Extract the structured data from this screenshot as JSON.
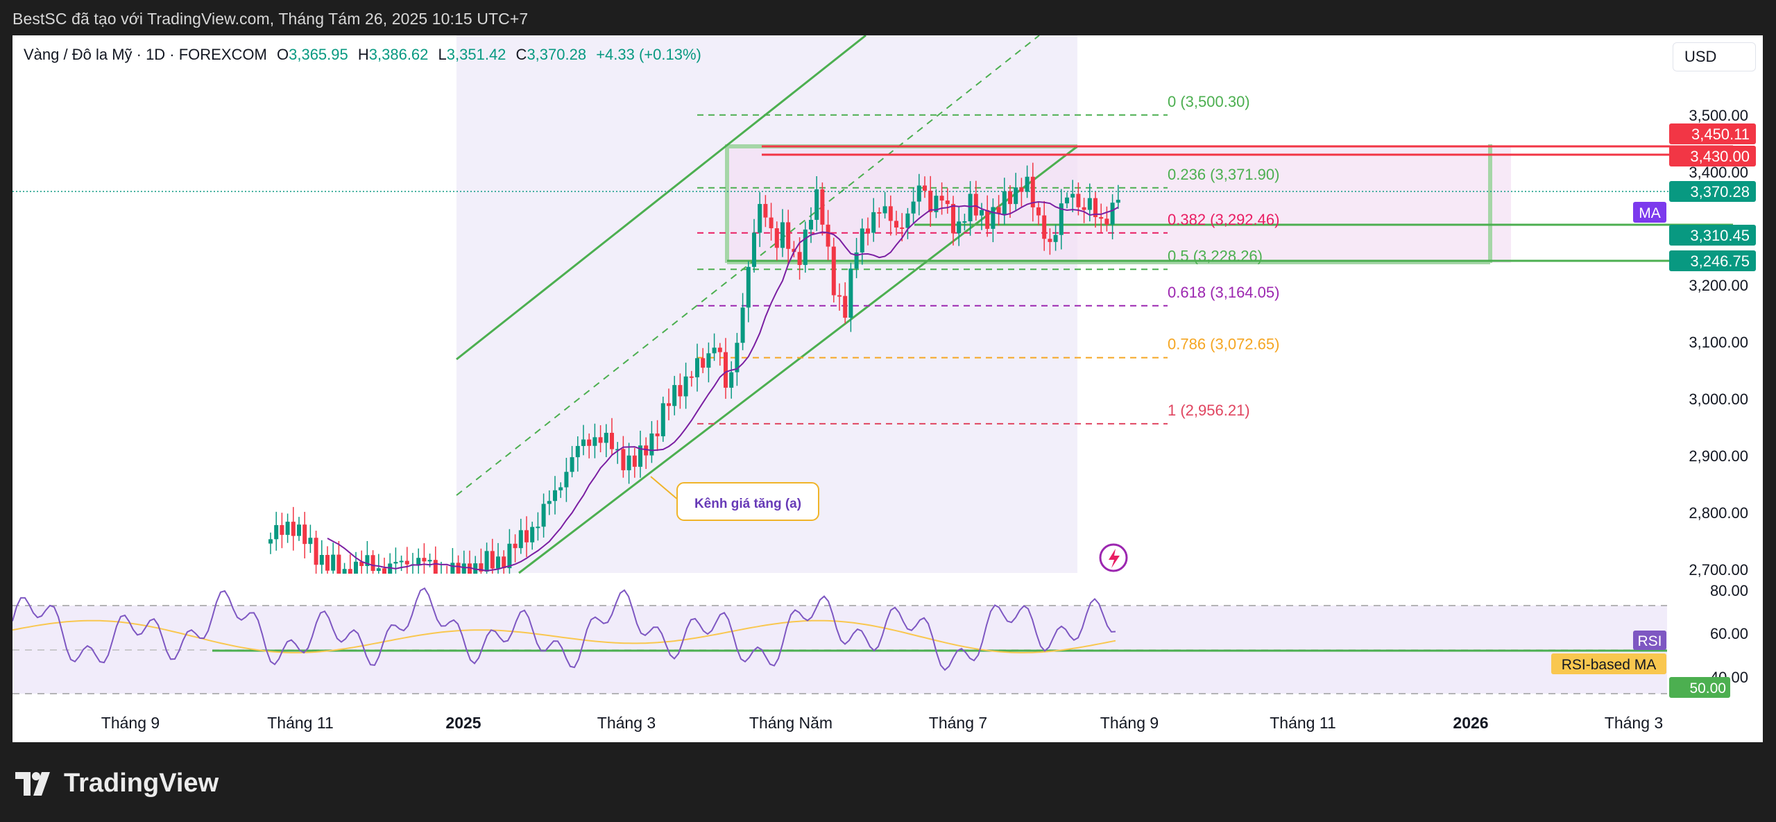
{
  "header": {
    "attribution": "BestSC đã tạo với TradingView.com, Tháng Tám 26, 2025 10:15 UTC+7"
  },
  "legend": {
    "symbol": "Vàng / Đô la Mỹ · 1D · FOREXCOM",
    "o_label": "O",
    "o_value": "3,365.95",
    "h_label": "H",
    "h_value": "3,386.62",
    "l_label": "L",
    "l_value": "3,351.42",
    "c_label": "C",
    "c_value": "3,370.28",
    "change": "+4.33 (+0.13%)"
  },
  "currency_button": {
    "label": "USD"
  },
  "chart_data": {
    "type": "candlestick",
    "price_axis_ticks": [
      "3,500.00",
      "3,400.00",
      "3,200.00",
      "3,100.00",
      "3,000.00",
      "2,900.00",
      "2,800.00",
      "2,700.00"
    ],
    "rsi_axis_ticks": [
      "80.00",
      "60.00",
      "40.00"
    ],
    "time_axis_labels": [
      {
        "label": "Tháng 9",
        "bold": false
      },
      {
        "label": "Tháng 11",
        "bold": false
      },
      {
        "label": "2025",
        "bold": true
      },
      {
        "label": "Tháng 3",
        "bold": false
      },
      {
        "label": "Tháng Năm",
        "bold": false
      },
      {
        "label": "Tháng 7",
        "bold": false
      },
      {
        "label": "Tháng 9",
        "bold": false
      },
      {
        "label": "Tháng 11",
        "bold": false
      },
      {
        "label": "2026",
        "bold": true
      },
      {
        "label": "Tháng 3",
        "bold": false
      }
    ],
    "price_tags": [
      {
        "value": "3,450.11",
        "color": "#f23645"
      },
      {
        "value": "3,430.00",
        "color": "#f23645"
      },
      {
        "value": "3,370.28",
        "color": "#089981"
      },
      {
        "value": "3,310.45",
        "color": "#089981"
      },
      {
        "value": "3,246.75",
        "color": "#089981"
      }
    ],
    "fibonacci_levels": [
      {
        "label": "0 (3,500.30)",
        "value": 3500.3,
        "color": "#4caf50"
      },
      {
        "label": "0.236 (3,371.90)",
        "value": 3371.9,
        "color": "#4caf50"
      },
      {
        "label": "0.382 (3,292.46)",
        "value": 3292.46,
        "color": "#e91e63"
      },
      {
        "label": "0.5 (3,228.26)",
        "value": 3228.26,
        "color": "#4caf50"
      },
      {
        "label": "0.618 (3,164.05)",
        "value": 3164.05,
        "color": "#9c27b0"
      },
      {
        "label": "0.786 (3,072.65)",
        "value": 3072.65,
        "color": "#f5a623"
      },
      {
        "label": "1 (2,956.21)",
        "value": 2956.21,
        "color": "#e04560"
      }
    ],
    "indicator_tags": {
      "ma": "MA",
      "rsi": "RSI",
      "rsi_ma": "RSI-based MA",
      "rsi_value": "50.00"
    },
    "annotation": "Kênh giá tăng (a)",
    "colors": {
      "up": "#089981",
      "down": "#f23645",
      "ma": "#7b1fa2",
      "channel": "#4caf50",
      "rsi": "#7e57c2",
      "rsi_ma": "#f9c74f"
    }
  },
  "footer": {
    "brand": "TradingView"
  }
}
